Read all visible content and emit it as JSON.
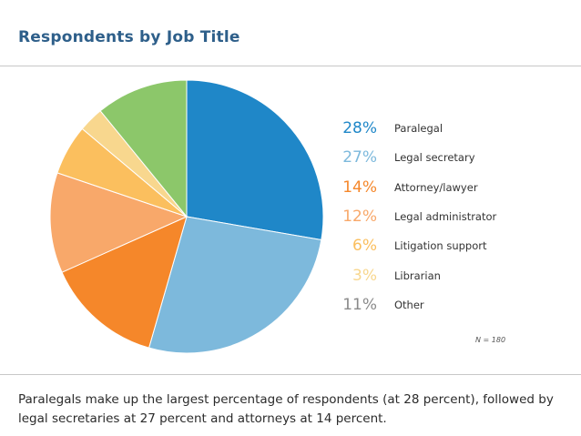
{
  "header": {
    "title": "Respondents by Job Title"
  },
  "chart_data": {
    "type": "pie",
    "title": "Respondents by Job Title",
    "slices": [
      {
        "label": "Paralegal",
        "value": 28,
        "display": "28%",
        "color": "#1f87c8"
      },
      {
        "label": "Legal secretary",
        "value": 27,
        "display": "27%",
        "color": "#7db9dc"
      },
      {
        "label": "Attorney/lawyer",
        "value": 14,
        "display": "14%",
        "color": "#f5872a"
      },
      {
        "label": "Legal administrator",
        "value": 12,
        "display": "12%",
        "color": "#f8a86a"
      },
      {
        "label": "Litigation support",
        "value": 6,
        "display": "6%",
        "color": "#fbbf5e"
      },
      {
        "label": "Librarian",
        "value": 3,
        "display": "3%",
        "color": "#f8d78e"
      },
      {
        "label": "Other",
        "value": 11,
        "display": "11%",
        "color": "#8cc76a"
      }
    ],
    "legend_placement": "right",
    "note": "N = 180"
  },
  "pct_colors": [
    "#1f87c8",
    "#7db9dc",
    "#f5872a",
    "#f8a86a",
    "#fbbf5e",
    "#f8d78e",
    "#8a8a8a"
  ],
  "caption": "Paralegals make up the largest percentage of respondents (at 28 percent), followed by legal secretaries at 27 percent and attorneys at 14 percent."
}
